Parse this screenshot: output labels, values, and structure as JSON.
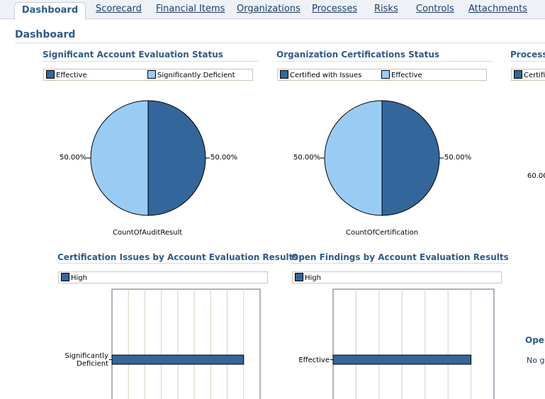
{
  "tabs": [
    {
      "label": "Dashboard",
      "active": true
    },
    {
      "label": "Scorecard"
    },
    {
      "label": "Financial Items"
    },
    {
      "label": "Organizations"
    },
    {
      "label": "Processes"
    },
    {
      "label": "Risks"
    },
    {
      "label": "Controls"
    },
    {
      "label": "Attachments"
    }
  ],
  "page_title": "Dashboard",
  "colors": {
    "dark_blue": "#33669a",
    "light_blue": "#99ccf5",
    "title_blue": "#2d5a8e"
  },
  "sections": {
    "sig_account": {
      "title": "Significant Account Evaluation Status",
      "legend": [
        "Effective",
        "Significantly Deficient"
      ]
    },
    "org_cert": {
      "title": "Organization Certifications Status",
      "legend": [
        "Certified with Issues",
        "Effective"
      ]
    },
    "process_cut": {
      "title": "Process",
      "legend_partial": "Certifi",
      "value_partial": "60.00"
    },
    "cert_issues": {
      "title": "Certification Issues by Account Evaluation Results",
      "legend": [
        "High"
      ]
    },
    "open_findings": {
      "title": "Open Findings by Account Evaluation Results",
      "legend": [
        "High"
      ]
    },
    "open_cut": {
      "title": "Oper",
      "text": "No gr"
    }
  },
  "chart_data": [
    {
      "type": "pie",
      "title": "Significant Account Evaluation Status",
      "xlabel": "CountOfAuditResult",
      "labels": [
        "Effective",
        "Significantly Deficient"
      ],
      "values": [
        50,
        50
      ],
      "value_labels": [
        "50.00%",
        "50.00%"
      ]
    },
    {
      "type": "pie",
      "title": "Organization Certifications Status",
      "xlabel": "CountOfCertification",
      "labels": [
        "Certified with Issues",
        "Effective"
      ],
      "values": [
        50,
        50
      ],
      "value_labels": [
        "50.00%",
        "50.00%"
      ]
    },
    {
      "type": "bar",
      "title": "Certification Issues by Account Evaluation Results",
      "orientation": "horizontal",
      "categories": [
        "Significantly Deficient"
      ],
      "category_label_lines": [
        "Significantly",
        "Deficient"
      ],
      "series": [
        {
          "name": "High",
          "values": [
            8
          ]
        }
      ],
      "xlim": [
        0,
        9
      ]
    },
    {
      "type": "bar",
      "title": "Open Findings by Account Evaluation Results",
      "orientation": "horizontal",
      "categories": [
        "Effective"
      ],
      "series": [
        {
          "name": "High",
          "values": [
            6
          ]
        }
      ],
      "xlim": [
        0,
        7
      ]
    }
  ]
}
